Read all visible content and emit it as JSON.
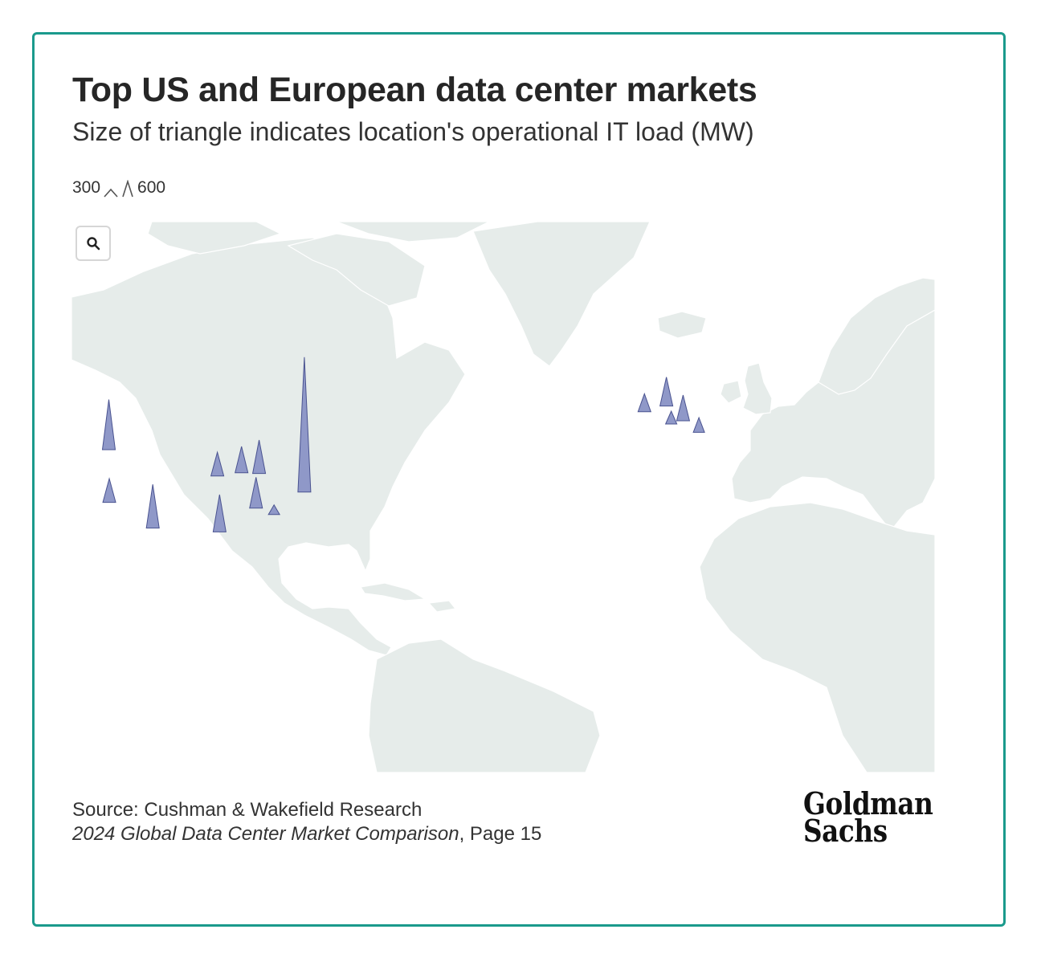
{
  "header": {
    "title": "Top US and European data center markets",
    "subtitle": "Size of triangle indicates location's operational IT load (MW)"
  },
  "size_legend": {
    "min_label": "300",
    "max_label": "600"
  },
  "map": {
    "land_color": "#e6ecea",
    "border_color": "#ffffff",
    "marker_color": "#8f98c8",
    "marker_stroke": "#4a5390",
    "zoom_icon": "search-icon"
  },
  "markets": [
    {
      "region": "US",
      "load_mw": 780,
      "lon": -122.0,
      "lat": 45.6
    },
    {
      "region": "US",
      "load_mw": 370,
      "lon": -121.9,
      "lat": 37.4
    },
    {
      "region": "US",
      "load_mw": 680,
      "lon": -112.0,
      "lat": 33.4
    },
    {
      "region": "US",
      "load_mw": 370,
      "lon": -97.3,
      "lat": 41.5
    },
    {
      "region": "US",
      "load_mw": 580,
      "lon": -96.8,
      "lat": 32.8
    },
    {
      "region": "US",
      "load_mw": 410,
      "lon": -91.8,
      "lat": 42.0
    },
    {
      "region": "US",
      "load_mw": 520,
      "lon": -87.8,
      "lat": 41.9
    },
    {
      "region": "US",
      "load_mw": 480,
      "lon": -88.5,
      "lat": 36.5
    },
    {
      "region": "US",
      "load_mw": 150,
      "lon": -84.4,
      "lat": 35.5
    },
    {
      "region": "US",
      "load_mw": 2100,
      "lon": -77.5,
      "lat": 39.0
    },
    {
      "region": "Europe",
      "load_mw": 280,
      "lon": -0.1,
      "lat": 51.5
    },
    {
      "region": "Europe",
      "load_mw": 450,
      "lon": 4.9,
      "lat": 52.4
    },
    {
      "region": "Europe",
      "load_mw": 200,
      "lon": 6.0,
      "lat": 49.6
    },
    {
      "region": "Europe",
      "load_mw": 400,
      "lon": 8.7,
      "lat": 50.1
    },
    {
      "region": "Europe",
      "load_mw": 230,
      "lon": 12.3,
      "lat": 48.3
    }
  ],
  "footer": {
    "source_line": "Source: Cushman & Wakefield Research",
    "publication": "2024 Global Data Center Market Comparison",
    "page_ref": ", Page 15",
    "logo_line1": "Goldman",
    "logo_line2": "Sachs"
  }
}
